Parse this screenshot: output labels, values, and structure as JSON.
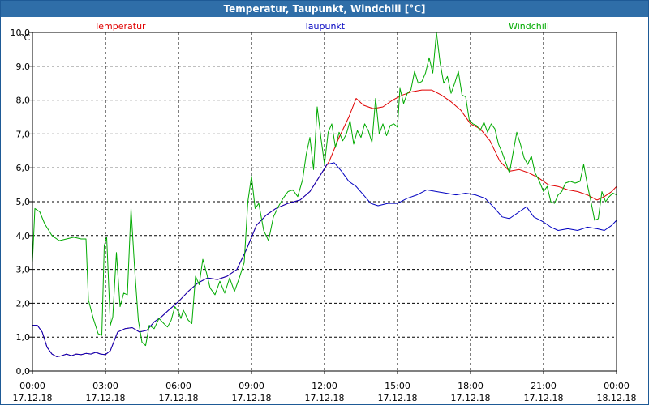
{
  "window": {
    "title": "Temperatur, Taupunkt, Windchill [°C]"
  },
  "chart_data": {
    "type": "line",
    "title": "Temperatur, Taupunkt, Windchill [°C]",
    "ylabel": "°C",
    "ylim": [
      0,
      10
    ],
    "xlim": [
      0,
      24
    ],
    "grid": true,
    "legend": "top",
    "x_ticks": [
      {
        "hour": 0,
        "time": "00:00",
        "date": "17.12.18"
      },
      {
        "hour": 3,
        "time": "03:00",
        "date": "17.12.18"
      },
      {
        "hour": 6,
        "time": "06:00",
        "date": "17.12.18"
      },
      {
        "hour": 9,
        "time": "09:00",
        "date": "17.12.18"
      },
      {
        "hour": 12,
        "time": "12:00",
        "date": "17.12.18"
      },
      {
        "hour": 15,
        "time": "15:00",
        "date": "17.12.18"
      },
      {
        "hour": 18,
        "time": "18:00",
        "date": "17.12.18"
      },
      {
        "hour": 21,
        "time": "21:00",
        "date": "17.12.18"
      },
      {
        "hour": 24,
        "time": "00:00",
        "date": "18.12.18"
      }
    ],
    "y_ticks": [
      "0,0",
      "1,0",
      "2,0",
      "3,0",
      "4,0",
      "5,0",
      "6,0",
      "7,0",
      "8,0",
      "9,0",
      "10,0"
    ],
    "series": [
      {
        "name": "Temperatur",
        "color": "#e00000",
        "points": [
          [
            0,
            1.35
          ],
          [
            0.2,
            1.35
          ],
          [
            0.4,
            1.15
          ],
          [
            0.6,
            0.7
          ],
          [
            0.8,
            0.5
          ],
          [
            1.0,
            0.42
          ],
          [
            1.2,
            0.45
          ],
          [
            1.4,
            0.5
          ],
          [
            1.6,
            0.45
          ],
          [
            1.8,
            0.5
          ],
          [
            2.0,
            0.48
          ],
          [
            2.2,
            0.52
          ],
          [
            2.4,
            0.5
          ],
          [
            2.6,
            0.55
          ],
          [
            2.8,
            0.5
          ],
          [
            3.0,
            0.48
          ],
          [
            3.2,
            0.6
          ],
          [
            3.5,
            1.15
          ],
          [
            3.8,
            1.25
          ],
          [
            4.1,
            1.28
          ],
          [
            4.4,
            1.15
          ],
          [
            4.7,
            1.2
          ],
          [
            5.0,
            1.45
          ],
          [
            5.3,
            1.6
          ],
          [
            5.6,
            1.8
          ],
          [
            6.0,
            2.05
          ],
          [
            6.4,
            2.35
          ],
          [
            6.8,
            2.6
          ],
          [
            7.2,
            2.75
          ],
          [
            7.6,
            2.7
          ],
          [
            8.0,
            2.8
          ],
          [
            8.4,
            3.0
          ],
          [
            8.8,
            3.6
          ],
          [
            9.2,
            4.3
          ],
          [
            9.6,
            4.6
          ],
          [
            10.0,
            4.8
          ],
          [
            10.5,
            4.95
          ],
          [
            11.0,
            5.05
          ],
          [
            11.4,
            5.3
          ],
          [
            11.8,
            5.75
          ],
          [
            12.2,
            6.2
          ],
          [
            12.6,
            6.9
          ],
          [
            13.0,
            7.5
          ],
          [
            13.3,
            8.05
          ],
          [
            13.6,
            7.85
          ],
          [
            14.0,
            7.75
          ],
          [
            14.4,
            7.8
          ],
          [
            14.8,
            8.0
          ],
          [
            15.2,
            8.15
          ],
          [
            15.6,
            8.25
          ],
          [
            16.0,
            8.3
          ],
          [
            16.4,
            8.3
          ],
          [
            16.8,
            8.15
          ],
          [
            17.2,
            7.95
          ],
          [
            17.6,
            7.7
          ],
          [
            18.0,
            7.3
          ],
          [
            18.4,
            7.15
          ],
          [
            18.8,
            6.8
          ],
          [
            19.2,
            6.2
          ],
          [
            19.6,
            5.9
          ],
          [
            20.0,
            5.95
          ],
          [
            20.4,
            5.85
          ],
          [
            20.8,
            5.7
          ],
          [
            21.2,
            5.5
          ],
          [
            21.6,
            5.45
          ],
          [
            22.0,
            5.35
          ],
          [
            22.4,
            5.3
          ],
          [
            22.8,
            5.2
          ],
          [
            23.2,
            5.05
          ],
          [
            23.5,
            5.15
          ],
          [
            23.8,
            5.3
          ],
          [
            24.0,
            5.45
          ]
        ]
      },
      {
        "name": "Taupunkt",
        "color": "#0000c0",
        "points": [
          [
            0,
            1.35
          ],
          [
            0.2,
            1.35
          ],
          [
            0.4,
            1.15
          ],
          [
            0.6,
            0.7
          ],
          [
            0.8,
            0.5
          ],
          [
            1.0,
            0.42
          ],
          [
            1.2,
            0.45
          ],
          [
            1.4,
            0.5
          ],
          [
            1.6,
            0.45
          ],
          [
            1.8,
            0.5
          ],
          [
            2.0,
            0.48
          ],
          [
            2.2,
            0.52
          ],
          [
            2.4,
            0.5
          ],
          [
            2.6,
            0.55
          ],
          [
            2.8,
            0.5
          ],
          [
            3.0,
            0.48
          ],
          [
            3.2,
            0.6
          ],
          [
            3.5,
            1.15
          ],
          [
            3.8,
            1.25
          ],
          [
            4.1,
            1.28
          ],
          [
            4.4,
            1.15
          ],
          [
            4.7,
            1.2
          ],
          [
            5.0,
            1.45
          ],
          [
            5.3,
            1.6
          ],
          [
            5.6,
            1.8
          ],
          [
            6.0,
            2.05
          ],
          [
            6.4,
            2.35
          ],
          [
            6.8,
            2.6
          ],
          [
            7.2,
            2.75
          ],
          [
            7.6,
            2.7
          ],
          [
            8.0,
            2.8
          ],
          [
            8.4,
            3.0
          ],
          [
            8.8,
            3.6
          ],
          [
            9.2,
            4.3
          ],
          [
            9.6,
            4.6
          ],
          [
            10.0,
            4.8
          ],
          [
            10.5,
            4.95
          ],
          [
            11.0,
            5.05
          ],
          [
            11.4,
            5.3
          ],
          [
            11.8,
            5.75
          ],
          [
            12.1,
            6.1
          ],
          [
            12.4,
            6.15
          ],
          [
            12.7,
            5.9
          ],
          [
            13.0,
            5.6
          ],
          [
            13.3,
            5.45
          ],
          [
            13.6,
            5.2
          ],
          [
            13.9,
            4.95
          ],
          [
            14.2,
            4.88
          ],
          [
            14.6,
            4.95
          ],
          [
            15.0,
            4.95
          ],
          [
            15.4,
            5.1
          ],
          [
            15.8,
            5.2
          ],
          [
            16.2,
            5.35
          ],
          [
            16.6,
            5.3
          ],
          [
            17.0,
            5.25
          ],
          [
            17.4,
            5.2
          ],
          [
            17.8,
            5.25
          ],
          [
            18.2,
            5.2
          ],
          [
            18.6,
            5.1
          ],
          [
            19.0,
            4.8
          ],
          [
            19.3,
            4.55
          ],
          [
            19.6,
            4.5
          ],
          [
            20.0,
            4.7
          ],
          [
            20.3,
            4.85
          ],
          [
            20.6,
            4.55
          ],
          [
            21.0,
            4.4
          ],
          [
            21.3,
            4.25
          ],
          [
            21.6,
            4.15
          ],
          [
            22.0,
            4.2
          ],
          [
            22.4,
            4.15
          ],
          [
            22.8,
            4.25
          ],
          [
            23.2,
            4.2
          ],
          [
            23.5,
            4.15
          ],
          [
            23.8,
            4.3
          ],
          [
            24.0,
            4.45
          ]
        ]
      },
      {
        "name": "Windchill",
        "color": "#00aa00",
        "points": [
          [
            0,
            3.2
          ],
          [
            0.1,
            4.8
          ],
          [
            0.3,
            4.7
          ],
          [
            0.5,
            4.35
          ],
          [
            0.8,
            4.0
          ],
          [
            1.1,
            3.85
          ],
          [
            1.4,
            3.9
          ],
          [
            1.7,
            3.95
          ],
          [
            2.0,
            3.9
          ],
          [
            2.2,
            3.9
          ],
          [
            2.3,
            2.1
          ],
          [
            2.5,
            1.55
          ],
          [
            2.7,
            1.1
          ],
          [
            2.85,
            1.05
          ],
          [
            2.95,
            3.7
          ],
          [
            3.05,
            3.95
          ],
          [
            3.2,
            1.35
          ],
          [
            3.3,
            1.6
          ],
          [
            3.45,
            3.5
          ],
          [
            3.6,
            1.9
          ],
          [
            3.75,
            2.3
          ],
          [
            3.9,
            2.25
          ],
          [
            4.05,
            4.8
          ],
          [
            4.2,
            3.0
          ],
          [
            4.35,
            1.5
          ],
          [
            4.5,
            0.85
          ],
          [
            4.65,
            0.75
          ],
          [
            4.8,
            1.35
          ],
          [
            5.0,
            1.25
          ],
          [
            5.2,
            1.55
          ],
          [
            5.4,
            1.4
          ],
          [
            5.55,
            1.3
          ],
          [
            5.7,
            1.5
          ],
          [
            5.85,
            1.9
          ],
          [
            6.0,
            1.75
          ],
          [
            6.1,
            1.55
          ],
          [
            6.2,
            1.8
          ],
          [
            6.4,
            1.5
          ],
          [
            6.55,
            1.4
          ],
          [
            6.7,
            2.8
          ],
          [
            6.85,
            2.55
          ],
          [
            7.0,
            3.3
          ],
          [
            7.15,
            2.9
          ],
          [
            7.3,
            2.45
          ],
          [
            7.5,
            2.25
          ],
          [
            7.7,
            2.65
          ],
          [
            7.9,
            2.3
          ],
          [
            8.1,
            2.75
          ],
          [
            8.3,
            2.35
          ],
          [
            8.5,
            2.75
          ],
          [
            8.7,
            3.2
          ],
          [
            8.85,
            5.0
          ],
          [
            9.0,
            5.75
          ],
          [
            9.15,
            4.8
          ],
          [
            9.3,
            4.95
          ],
          [
            9.5,
            4.15
          ],
          [
            9.7,
            3.85
          ],
          [
            9.9,
            4.55
          ],
          [
            10.1,
            4.85
          ],
          [
            10.3,
            5.1
          ],
          [
            10.5,
            5.3
          ],
          [
            10.7,
            5.35
          ],
          [
            10.9,
            5.15
          ],
          [
            11.1,
            5.65
          ],
          [
            11.25,
            6.4
          ],
          [
            11.4,
            6.9
          ],
          [
            11.55,
            5.95
          ],
          [
            11.7,
            7.8
          ],
          [
            11.85,
            6.9
          ],
          [
            12.0,
            6.1
          ],
          [
            12.15,
            7.05
          ],
          [
            12.3,
            7.3
          ],
          [
            12.45,
            6.6
          ],
          [
            12.6,
            7.05
          ],
          [
            12.75,
            6.8
          ],
          [
            12.9,
            7.0
          ],
          [
            13.05,
            7.4
          ],
          [
            13.2,
            6.7
          ],
          [
            13.35,
            7.1
          ],
          [
            13.5,
            6.9
          ],
          [
            13.65,
            7.3
          ],
          [
            13.8,
            7.1
          ],
          [
            13.95,
            6.75
          ],
          [
            14.1,
            8.05
          ],
          [
            14.25,
            7.0
          ],
          [
            14.4,
            7.3
          ],
          [
            14.55,
            6.95
          ],
          [
            14.7,
            7.25
          ],
          [
            14.85,
            7.3
          ],
          [
            15.0,
            7.2
          ],
          [
            15.1,
            8.35
          ],
          [
            15.25,
            7.9
          ],
          [
            15.4,
            8.2
          ],
          [
            15.55,
            8.3
          ],
          [
            15.7,
            8.85
          ],
          [
            15.85,
            8.5
          ],
          [
            16.0,
            8.55
          ],
          [
            16.15,
            8.8
          ],
          [
            16.3,
            9.25
          ],
          [
            16.45,
            8.8
          ],
          [
            16.6,
            10.0
          ],
          [
            16.75,
            9.1
          ],
          [
            16.9,
            8.5
          ],
          [
            17.05,
            8.7
          ],
          [
            17.2,
            8.2
          ],
          [
            17.35,
            8.5
          ],
          [
            17.5,
            8.85
          ],
          [
            17.65,
            8.15
          ],
          [
            17.8,
            8.1
          ],
          [
            17.95,
            7.4
          ],
          [
            18.1,
            7.3
          ],
          [
            18.25,
            7.25
          ],
          [
            18.4,
            7.1
          ],
          [
            18.55,
            7.35
          ],
          [
            18.7,
            7.05
          ],
          [
            18.85,
            7.3
          ],
          [
            19.0,
            7.15
          ],
          [
            19.15,
            6.7
          ],
          [
            19.3,
            6.45
          ],
          [
            19.45,
            6.15
          ],
          [
            19.6,
            5.85
          ],
          [
            19.75,
            6.45
          ],
          [
            19.9,
            7.05
          ],
          [
            20.05,
            6.7
          ],
          [
            20.2,
            6.3
          ],
          [
            20.35,
            6.1
          ],
          [
            20.5,
            6.35
          ],
          [
            20.65,
            5.85
          ],
          [
            20.8,
            5.65
          ],
          [
            21.0,
            5.3
          ],
          [
            21.15,
            5.45
          ],
          [
            21.3,
            5.0
          ],
          [
            21.45,
            4.95
          ],
          [
            21.6,
            5.2
          ],
          [
            21.75,
            5.3
          ],
          [
            21.9,
            5.55
          ],
          [
            22.1,
            5.6
          ],
          [
            22.3,
            5.55
          ],
          [
            22.5,
            5.6
          ],
          [
            22.65,
            6.1
          ],
          [
            22.8,
            5.5
          ],
          [
            22.95,
            5.0
          ],
          [
            23.1,
            4.45
          ],
          [
            23.25,
            4.5
          ],
          [
            23.4,
            5.3
          ],
          [
            23.55,
            5.0
          ],
          [
            23.7,
            5.15
          ],
          [
            23.85,
            5.25
          ],
          [
            24.0,
            5.2
          ]
        ]
      }
    ]
  }
}
